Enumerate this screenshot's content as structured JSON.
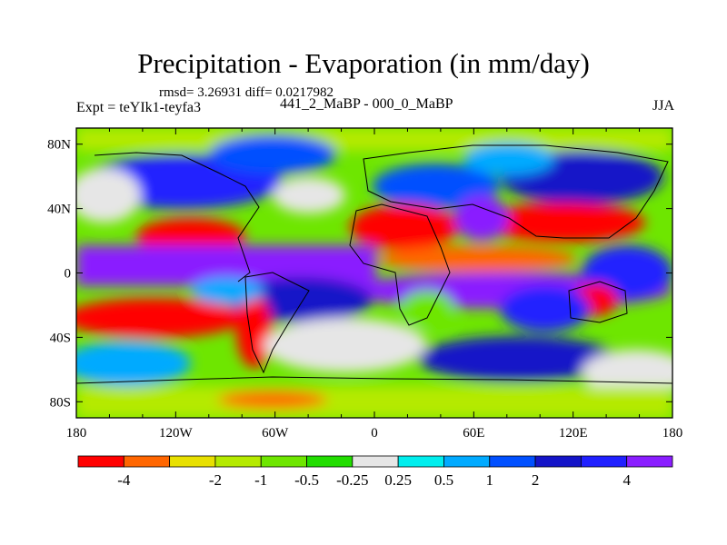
{
  "title": "Precipitation - Evaporation (in mm/day)",
  "stats": "rmsd= 3.26931 diff= 0.0217982",
  "experiment": "Expt = teYIk1-teyfa3",
  "comparison": "441_2_MaBP - 000_0_MaBP",
  "season": "JJA",
  "axes": {
    "y_ticks": [
      "80N",
      "40N",
      "0",
      "40S",
      "80S"
    ],
    "x_ticks": [
      "180",
      "120W",
      "60W",
      "0",
      "60E",
      "120E",
      "180"
    ]
  },
  "colorbar": {
    "labels": [
      "-4",
      "-2",
      "-1",
      "-0.5",
      "-0.25",
      "0.25",
      "0.5",
      "1",
      "2",
      "4"
    ],
    "colors": [
      "#ff0000",
      "#ff6600",
      "#e8e000",
      "#b5ea00",
      "#6ee600",
      "#22dd00",
      "#e6e6e6",
      "#00eeee",
      "#00aaff",
      "#0050ff",
      "#1414c8",
      "#2020ff",
      "#8a1eff"
    ]
  }
}
